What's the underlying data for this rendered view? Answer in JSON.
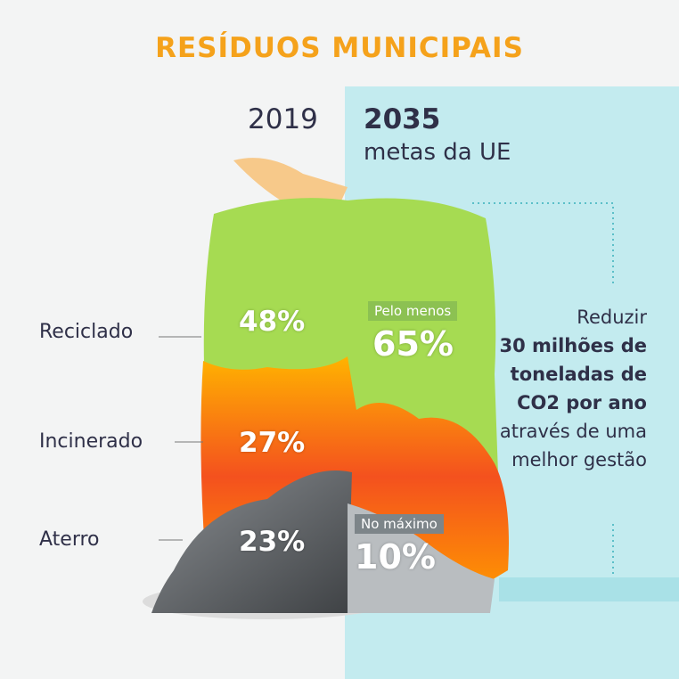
{
  "title": "RESÍDUOS MUNICIPAIS",
  "years": {
    "current": "2019",
    "target": "2035",
    "target_caption": "metas da UE"
  },
  "categories": [
    {
      "label": "Reciclado",
      "value_2019": "48%",
      "target_qualifier": "Pelo menos",
      "target_value": "65%"
    },
    {
      "label": "Incinerado",
      "value_2019": "27%"
    },
    {
      "label": "Aterro",
      "value_2019": "23%",
      "target_qualifier": "No máximo",
      "target_value": "10%"
    }
  ],
  "claim": {
    "line1": "Reduzir",
    "bold1": "30 milhões de",
    "bold2": "toneladas de",
    "bold3": "CO2 por ano",
    "line2": "através de uma",
    "line3": "melhor gestão"
  },
  "colors": {
    "title": "#f5a21b",
    "recycled": "#9ed84a",
    "fire": "#f57f17",
    "landfill": "#6b6f73",
    "panel": "#c3ebef"
  }
}
